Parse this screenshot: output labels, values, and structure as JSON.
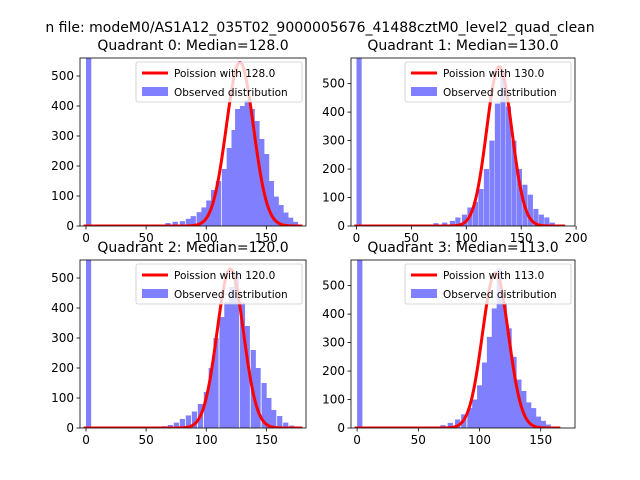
{
  "figure_title": "n file: modeM0/AS1A12_035T02_9000005676_41488cztM0_level2_quad_clean",
  "chart_data": [
    {
      "type": "bar",
      "title": "Quadrant 0: Median=128.0",
      "xlim": [
        -5,
        183
      ],
      "ylim": [
        0,
        560
      ],
      "xticks": [
        0,
        50,
        100,
        150
      ],
      "yticks": [
        0,
        100,
        200,
        300,
        400,
        500
      ],
      "bin_width": 4.4,
      "bins": [
        [
          0,
          560
        ],
        [
          60,
          3
        ],
        [
          66,
          10
        ],
        [
          72,
          14
        ],
        [
          78,
          16
        ],
        [
          83,
          24
        ],
        [
          87,
          33
        ],
        [
          92,
          46
        ],
        [
          96,
          62
        ],
        [
          100,
          85
        ],
        [
          104,
          120
        ],
        [
          108,
          150
        ],
        [
          113,
          190
        ],
        [
          117,
          260
        ],
        [
          121,
          320
        ],
        [
          124,
          390
        ],
        [
          128,
          400
        ],
        [
          132,
          420
        ],
        [
          136,
          390
        ],
        [
          140,
          350
        ],
        [
          144,
          290
        ],
        [
          148,
          240
        ],
        [
          152,
          150
        ],
        [
          156,
          98
        ],
        [
          160,
          70
        ],
        [
          164,
          45
        ],
        [
          168,
          28
        ],
        [
          172,
          14
        ]
      ],
      "poisson_mean": 128.0,
      "poisson_peak": 545,
      "curve_range": [
        -2,
        180
      ],
      "legend": {
        "line_label": "Poission with 128.0",
        "patch_label": "Observed distribution",
        "loc": "upper right"
      },
      "colors": {
        "hist": "#8080ff",
        "line": "#ff0000"
      }
    },
    {
      "type": "bar",
      "title": "Quadrant 1: Median=130.0",
      "xlim": [
        -5,
        199
      ],
      "ylim": [
        0,
        590
      ],
      "xticks": [
        0,
        50,
        100,
        150,
        200
      ],
      "yticks": [
        0,
        100,
        200,
        300,
        400,
        500
      ],
      "bin_width": 4.7,
      "bins": [
        [
          0,
          590
        ],
        [
          70,
          10
        ],
        [
          78,
          12
        ],
        [
          85,
          18
        ],
        [
          90,
          30
        ],
        [
          96,
          40
        ],
        [
          101,
          65
        ],
        [
          106,
          85
        ],
        [
          111,
          130
        ],
        [
          116,
          200
        ],
        [
          121,
          300
        ],
        [
          126,
          430
        ],
        [
          131,
          540
        ],
        [
          136,
          420
        ],
        [
          141,
          300
        ],
        [
          146,
          200
        ],
        [
          151,
          145
        ],
        [
          156,
          110
        ],
        [
          161,
          60
        ],
        [
          166,
          40
        ],
        [
          171,
          30
        ],
        [
          176,
          12
        ]
      ],
      "poisson_mean": 130.0,
      "poisson_peak": 560,
      "curve_range": [
        -2,
        190
      ],
      "legend": {
        "line_label": "Poission with 130.0",
        "patch_label": "Observed distribution",
        "loc": "upper right"
      },
      "colors": {
        "hist": "#8080ff",
        "line": "#ff0000"
      }
    },
    {
      "type": "bar",
      "title": "Quadrant 2: Median=120.0",
      "xlim": [
        -5,
        183
      ],
      "ylim": [
        0,
        560
      ],
      "xticks": [
        0,
        50,
        100,
        150
      ],
      "yticks": [
        0,
        100,
        200,
        300,
        400,
        500
      ],
      "bin_width": 4.3,
      "bins": [
        [
          0,
          560
        ],
        [
          55,
          3
        ],
        [
          63,
          6
        ],
        [
          68,
          10
        ],
        [
          73,
          18
        ],
        [
          78,
          30
        ],
        [
          83,
          42
        ],
        [
          88,
          55
        ],
        [
          93,
          80
        ],
        [
          98,
          120
        ],
        [
          102,
          200
        ],
        [
          106,
          300
        ],
        [
          111,
          370
        ],
        [
          115,
          420
        ],
        [
          119,
          470
        ],
        [
          123,
          520
        ],
        [
          128,
          420
        ],
        [
          132,
          340
        ],
        [
          137,
          260
        ],
        [
          141,
          200
        ],
        [
          146,
          150
        ],
        [
          150,
          100
        ],
        [
          154,
          60
        ],
        [
          159,
          40
        ],
        [
          164,
          18
        ],
        [
          169,
          8
        ],
        [
          173,
          4
        ]
      ],
      "poisson_mean": 120.0,
      "poisson_peak": 530,
      "curve_range": [
        -2,
        180
      ],
      "legend": {
        "line_label": "Poission with 120.0",
        "patch_label": "Observed distribution",
        "loc": "upper right"
      },
      "colors": {
        "hist": "#8080ff",
        "line": "#ff0000"
      }
    },
    {
      "type": "bar",
      "title": "Quadrant 3: Median=113.0",
      "xlim": [
        -5,
        178
      ],
      "ylim": [
        0,
        590
      ],
      "xticks": [
        0,
        50,
        100,
        150
      ],
      "yticks": [
        0,
        100,
        200,
        300,
        400,
        500
      ],
      "bin_width": 4.3,
      "bins": [
        [
          0,
          590
        ],
        [
          62,
          5
        ],
        [
          68,
          10
        ],
        [
          74,
          18
        ],
        [
          80,
          30
        ],
        [
          85,
          48
        ],
        [
          90,
          70
        ],
        [
          94,
          100
        ],
        [
          98,
          150
        ],
        [
          102,
          230
        ],
        [
          106,
          320
        ],
        [
          110,
          420
        ],
        [
          114,
          560
        ],
        [
          118,
          440
        ],
        [
          122,
          350
        ],
        [
          126,
          250
        ],
        [
          130,
          170
        ],
        [
          134,
          130
        ],
        [
          138,
          90
        ],
        [
          142,
          70
        ],
        [
          146,
          40
        ],
        [
          150,
          25
        ],
        [
          154,
          12
        ]
      ],
      "poisson_mean": 113.0,
      "poisson_peak": 545,
      "curve_range": [
        -2,
        166
      ],
      "legend": {
        "line_label": "Poission with 113.0",
        "patch_label": "Observed distribution",
        "loc": "upper right"
      },
      "colors": {
        "hist": "#8080ff",
        "line": "#ff0000"
      }
    }
  ]
}
